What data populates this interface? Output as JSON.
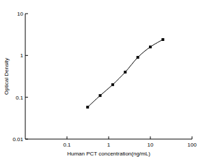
{
  "chart_data": {
    "type": "line",
    "x_label": "Human PCT concentration(ng/mL)",
    "y_label": "Optical Density",
    "log": true,
    "x": [
      0.3125,
      0.625,
      1.25,
      2.5,
      5,
      10,
      20
    ],
    "series": [
      {
        "values": [
          0.058,
          0.11,
          0.2,
          0.4,
          0.9,
          1.6,
          2.4
        ],
        "color": "#000000",
        "marker": "square",
        "line_style": "solid"
      }
    ],
    "xlim": [
      0.01,
      100
    ],
    "ylim": [
      0.01,
      10
    ],
    "xticks": [
      0.1,
      1,
      10,
      100
    ],
    "yticks": [
      0.01,
      0.1,
      1,
      10
    ],
    "grid": false
  }
}
